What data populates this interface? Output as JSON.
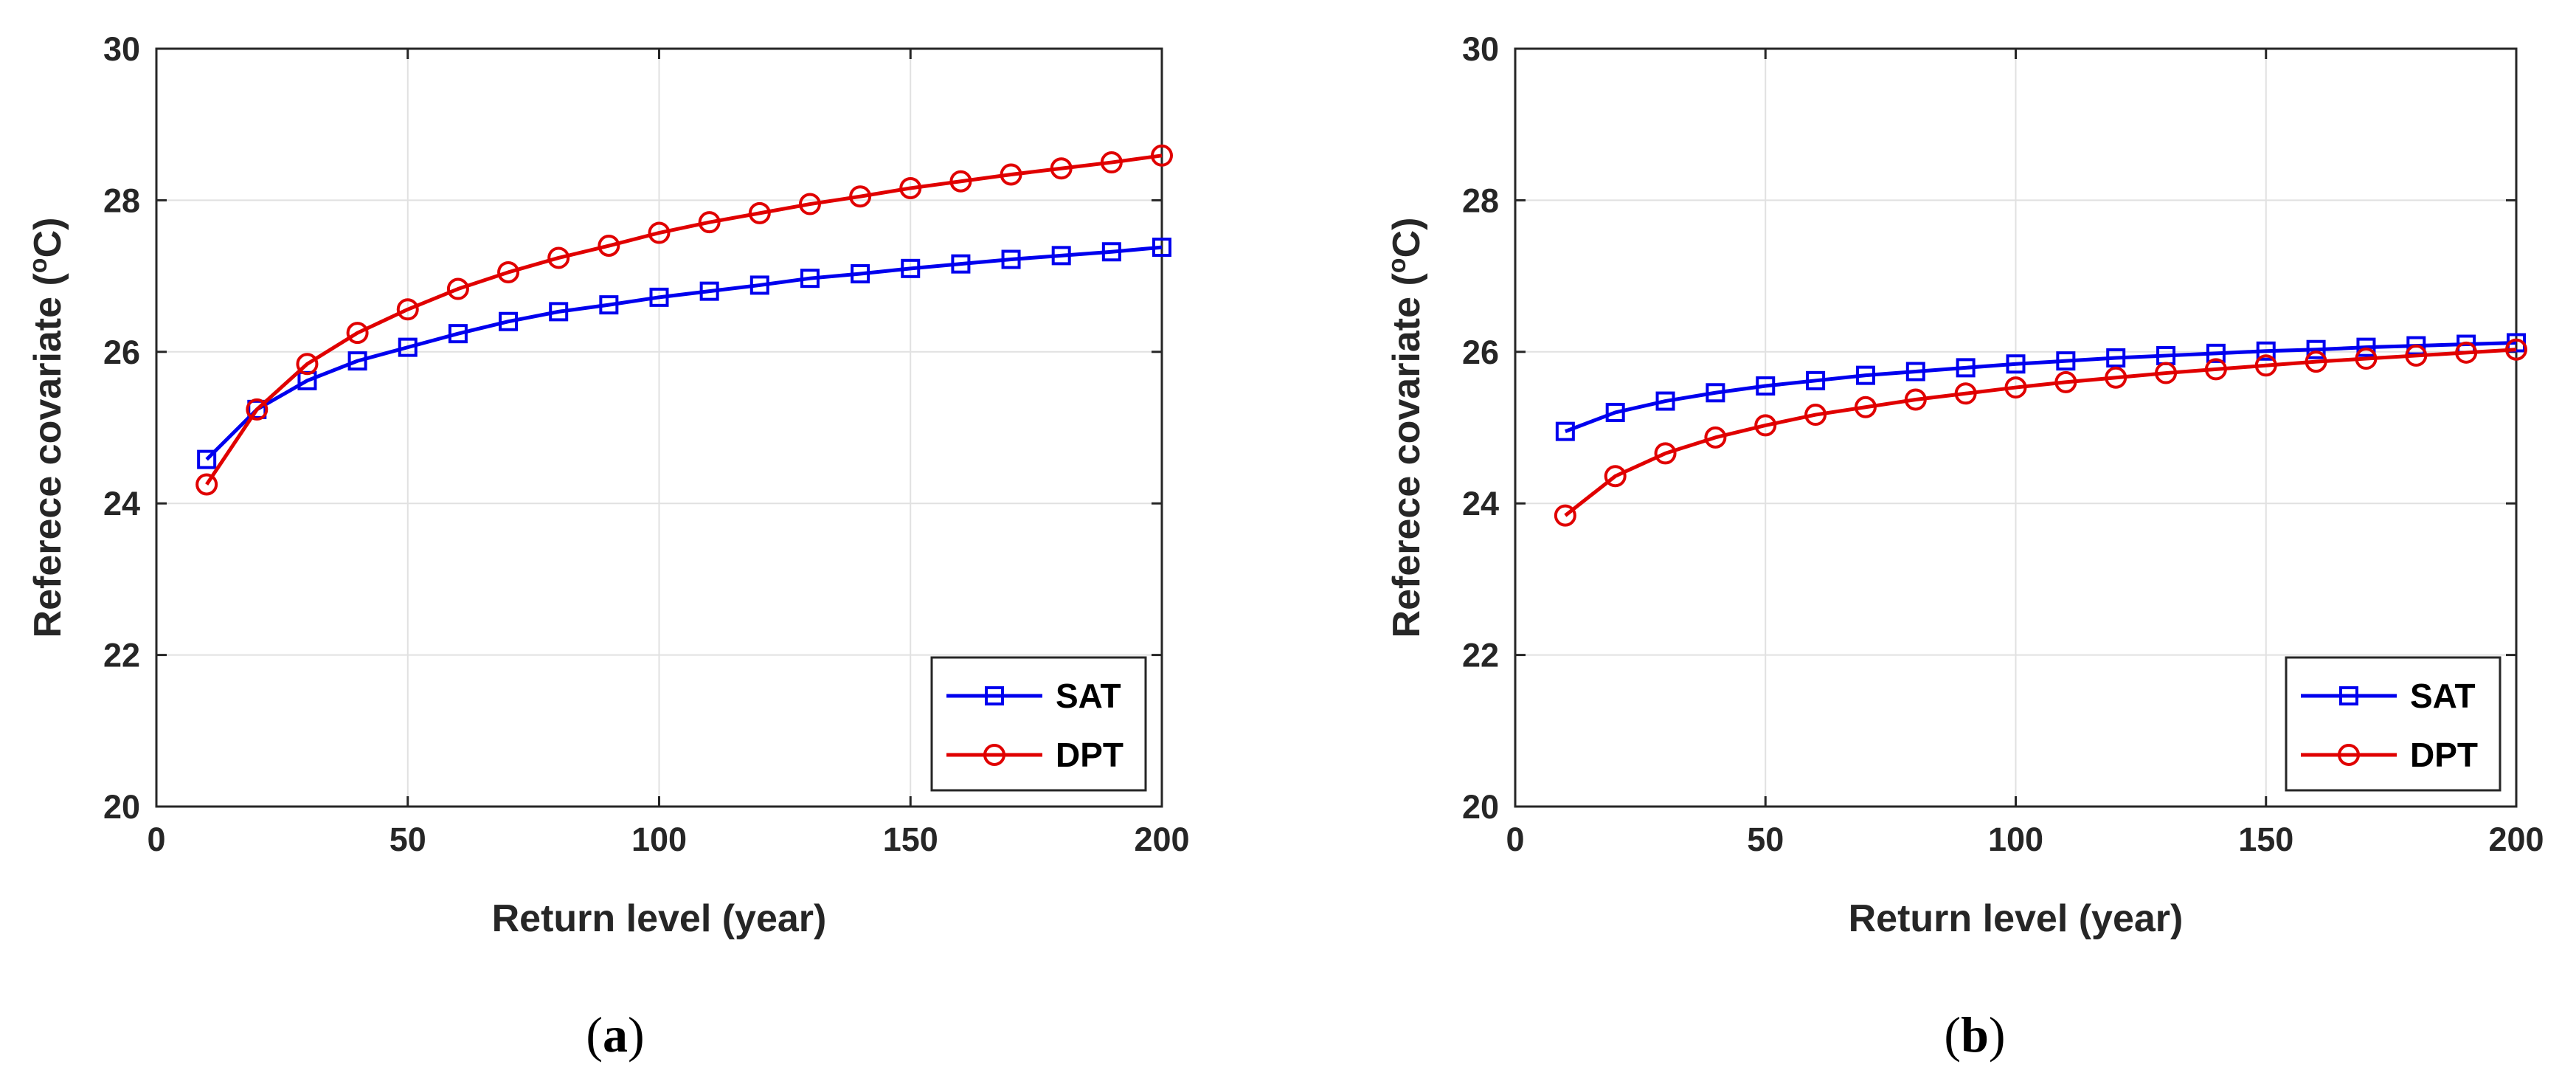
{
  "figure": {
    "captions": [
      {
        "open": "(",
        "letter": "a",
        "close": ")"
      },
      {
        "open": "(",
        "letter": "b",
        "close": ")"
      }
    ]
  },
  "colors": {
    "SAT": "#0000ee",
    "DPT": "#e00000",
    "grid": "#e1e1e1",
    "axis": "#262626"
  },
  "chart_data": [
    {
      "type": "line",
      "panel": "a",
      "xlabel": "Return level (year)",
      "ylabel_prefix": "Referece covariate (",
      "ylabel_sup": "o",
      "ylabel_suffix": "C)",
      "xlim": [
        0,
        200
      ],
      "ylim": [
        20,
        30
      ],
      "xticks": [
        0,
        50,
        100,
        150,
        200
      ],
      "yticks": [
        20,
        22,
        24,
        26,
        28,
        30
      ],
      "grid": true,
      "legend_position": "bottom-right",
      "x": [
        10,
        20,
        30,
        40,
        50,
        60,
        70,
        80,
        90,
        100,
        110,
        120,
        130,
        140,
        150,
        160,
        170,
        180,
        190,
        200
      ],
      "series": [
        {
          "name": "SAT",
          "marker": "square",
          "values": [
            24.58,
            25.24,
            25.62,
            25.88,
            26.06,
            26.24,
            26.4,
            26.53,
            26.62,
            26.72,
            26.8,
            26.88,
            26.97,
            27.03,
            27.1,
            27.16,
            27.22,
            27.27,
            27.32,
            27.38
          ]
        },
        {
          "name": "DPT",
          "marker": "circle",
          "values": [
            24.25,
            25.24,
            25.84,
            26.25,
            26.56,
            26.83,
            27.05,
            27.24,
            27.4,
            27.57,
            27.71,
            27.83,
            27.95,
            28.05,
            28.16,
            28.25,
            28.34,
            28.42,
            28.5,
            28.59
          ]
        }
      ]
    },
    {
      "type": "line",
      "panel": "b",
      "xlabel": "Return level (year)",
      "ylabel_prefix": "Referece covariate (",
      "ylabel_sup": "o",
      "ylabel_suffix": "C)",
      "xlim": [
        0,
        200
      ],
      "ylim": [
        20,
        30
      ],
      "xticks": [
        0,
        50,
        100,
        150,
        200
      ],
      "yticks": [
        20,
        22,
        24,
        26,
        28,
        30
      ],
      "grid": true,
      "legend_position": "bottom-right",
      "x": [
        10,
        20,
        30,
        40,
        50,
        60,
        70,
        80,
        90,
        100,
        110,
        120,
        130,
        140,
        150,
        160,
        170,
        180,
        190,
        200
      ],
      "series": [
        {
          "name": "SAT",
          "marker": "square",
          "values": [
            24.95,
            25.2,
            25.35,
            25.46,
            25.55,
            25.62,
            25.69,
            25.74,
            25.79,
            25.84,
            25.88,
            25.92,
            25.95,
            25.98,
            26.01,
            26.03,
            26.06,
            26.08,
            26.1,
            26.12
          ]
        },
        {
          "name": "DPT",
          "marker": "circle",
          "values": [
            23.84,
            24.36,
            24.66,
            24.87,
            25.03,
            25.17,
            25.27,
            25.37,
            25.45,
            25.53,
            25.6,
            25.66,
            25.72,
            25.77,
            25.82,
            25.87,
            25.91,
            25.95,
            25.99,
            26.03
          ]
        }
      ]
    }
  ]
}
